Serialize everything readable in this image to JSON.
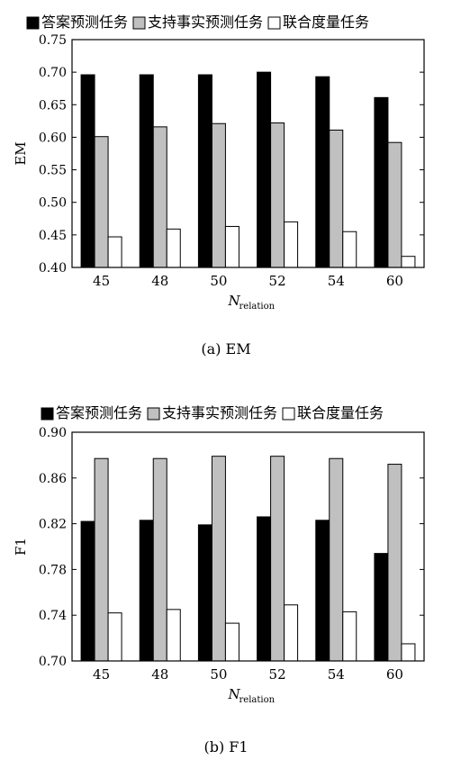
{
  "legend": [
    {
      "label": "答案预测任务",
      "color": "#000000"
    },
    {
      "label": "支持事实预测任务",
      "color": "#c0c0c0"
    },
    {
      "label": "联合度量任务",
      "color": "#ffffff"
    }
  ],
  "chart_data": [
    {
      "type": "bar",
      "caption": "(a) EM",
      "xlabel_main": "N",
      "xlabel_sub": "relation",
      "ylabel": "EM",
      "categories": [
        "45",
        "48",
        "50",
        "52",
        "54",
        "60"
      ],
      "ylim": [
        0.4,
        0.75
      ],
      "yticks": [
        "0.40",
        "0.45",
        "0.50",
        "0.55",
        "0.60",
        "0.65",
        "0.70",
        "0.75"
      ],
      "ytick_values": [
        0.4,
        0.45,
        0.5,
        0.55,
        0.6,
        0.65,
        0.7,
        0.75
      ],
      "legend_position": "top",
      "series": [
        {
          "name": "答案预测任务",
          "color": "#000000",
          "values": [
            0.696,
            0.696,
            0.696,
            0.7,
            0.693,
            0.661
          ]
        },
        {
          "name": "支持事实预测任务",
          "color": "#c0c0c0",
          "values": [
            0.601,
            0.616,
            0.621,
            0.622,
            0.611,
            0.592
          ]
        },
        {
          "name": "联合度量任务",
          "color": "#ffffff",
          "values": [
            0.447,
            0.459,
            0.463,
            0.47,
            0.455,
            0.417
          ]
        }
      ]
    },
    {
      "type": "bar",
      "caption": "(b) F1",
      "xlabel_main": "N",
      "xlabel_sub": "relation",
      "ylabel": "F1",
      "categories": [
        "45",
        "48",
        "50",
        "52",
        "54",
        "60"
      ],
      "ylim": [
        0.7,
        0.9
      ],
      "yticks": [
        "0.70",
        "0.74",
        "0.78",
        "0.82",
        "0.86",
        "0.90"
      ],
      "ytick_values": [
        0.7,
        0.74,
        0.78,
        0.82,
        0.86,
        0.9
      ],
      "legend_position": "top",
      "series": [
        {
          "name": "答案预测任务",
          "color": "#000000",
          "values": [
            0.822,
            0.823,
            0.819,
            0.826,
            0.823,
            0.794
          ]
        },
        {
          "name": "支持事实预测任务",
          "color": "#c0c0c0",
          "values": [
            0.877,
            0.877,
            0.879,
            0.879,
            0.877,
            0.872
          ]
        },
        {
          "name": "联合度量任务",
          "color": "#ffffff",
          "values": [
            0.742,
            0.745,
            0.733,
            0.749,
            0.743,
            0.715
          ]
        }
      ]
    }
  ]
}
